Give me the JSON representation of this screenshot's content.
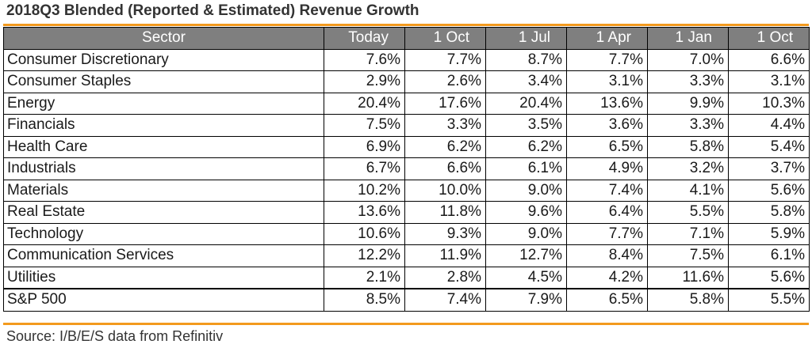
{
  "title": "2018Q3 Blended (Reported & Estimated) Revenue Growth",
  "source": "Source: I/B/E/S data from Refinitiv",
  "colors": {
    "accent_rule": "#f39a1e",
    "header_bg": "#7f7f7f",
    "header_text": "#ffffff"
  },
  "chart_data": {
    "type": "table",
    "title": "2018Q3 Blended (Reported & Estimated) Revenue Growth",
    "columns": [
      "Sector",
      "Today",
      "1 Oct",
      "1 Jul",
      "1 Apr",
      "1 Jan",
      "1 Oct"
    ],
    "rows": [
      {
        "sector": "Consumer Discretionary",
        "values": [
          "7.6%",
          "7.7%",
          "8.7%",
          "7.7%",
          "7.0%",
          "6.6%"
        ]
      },
      {
        "sector": "Consumer Staples",
        "values": [
          "2.9%",
          "2.6%",
          "3.4%",
          "3.1%",
          "3.3%",
          "3.1%"
        ]
      },
      {
        "sector": "Energy",
        "values": [
          "20.4%",
          "17.6%",
          "20.4%",
          "13.6%",
          "9.9%",
          "10.3%"
        ]
      },
      {
        "sector": "Financials",
        "values": [
          "7.5%",
          "3.3%",
          "3.5%",
          "3.6%",
          "3.3%",
          "4.4%"
        ]
      },
      {
        "sector": "Health Care",
        "values": [
          "6.9%",
          "6.2%",
          "6.2%",
          "6.5%",
          "5.8%",
          "5.4%"
        ]
      },
      {
        "sector": "Industrials",
        "values": [
          "6.7%",
          "6.6%",
          "6.1%",
          "4.9%",
          "3.2%",
          "3.7%"
        ]
      },
      {
        "sector": "Materials",
        "values": [
          "10.2%",
          "10.0%",
          "9.0%",
          "7.4%",
          "4.1%",
          "5.6%"
        ]
      },
      {
        "sector": "Real Estate",
        "values": [
          "13.6%",
          "11.8%",
          "9.6%",
          "6.4%",
          "5.5%",
          "5.8%"
        ]
      },
      {
        "sector": "Technology",
        "values": [
          "10.6%",
          "9.3%",
          "9.0%",
          "7.7%",
          "7.1%",
          "5.9%"
        ]
      },
      {
        "sector": "Communication Services",
        "values": [
          "12.2%",
          "11.9%",
          "12.7%",
          "8.4%",
          "7.5%",
          "6.1%"
        ]
      },
      {
        "sector": "Utilities",
        "values": [
          "2.1%",
          "2.8%",
          "4.5%",
          "4.2%",
          "11.6%",
          "5.6%"
        ]
      }
    ],
    "total": {
      "sector": "S&P 500",
      "values": [
        "8.5%",
        "7.4%",
        "7.9%",
        "6.5%",
        "5.8%",
        "5.5%"
      ]
    }
  }
}
